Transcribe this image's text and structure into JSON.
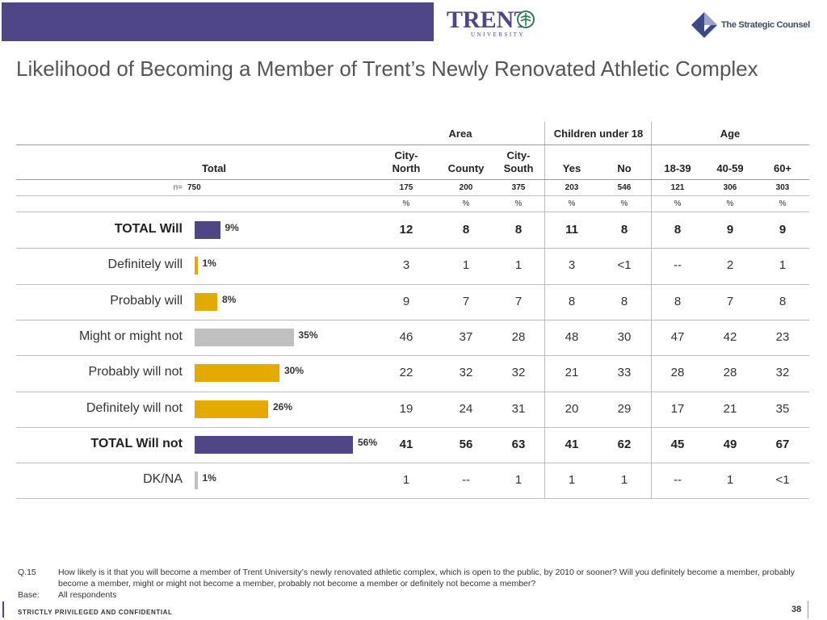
{
  "logos": {
    "trent_word": "TRENT",
    "trent_sub": "UNIVERSITY",
    "strategic_counsel": "The Strategic Counsel"
  },
  "title": "Likelihood of Becoming a Member of Trent’s Newly Renovated Athletic Complex",
  "groups": {
    "area": "Area",
    "children": "Children under 18",
    "age": "Age"
  },
  "columns": {
    "total": "Total",
    "city_north": [
      "City-",
      "North"
    ],
    "county": "County",
    "city_south": [
      "City-",
      "South"
    ],
    "yes": "Yes",
    "no": "No",
    "age1": "18-39",
    "age2": "40-59",
    "age3": "60+"
  },
  "n_label": "n=",
  "n_values": [
    "750",
    "175",
    "200",
    "375",
    "203",
    "546",
    "121",
    "306",
    "303"
  ],
  "percent_sign": "%",
  "colors": {
    "purple": "#4f4688",
    "gold": "#e5aa00",
    "gray": "#c0c0c0"
  },
  "rows": [
    {
      "label": "TOTAL Will",
      "bold": true,
      "total": "9%",
      "total_value": 9,
      "bar_color": "purple",
      "values": [
        "12",
        "8",
        "8",
        "11",
        "8",
        "8",
        "9",
        "9"
      ]
    },
    {
      "label": "Definitely will",
      "bold": false,
      "total": "1%",
      "total_value": 1,
      "bar_color": "gold",
      "values": [
        "3",
        "1",
        "1",
        "3",
        "<1",
        "--",
        "2",
        "1"
      ]
    },
    {
      "label": "Probably will",
      "bold": false,
      "total": "8%",
      "total_value": 8,
      "bar_color": "gold",
      "values": [
        "9",
        "7",
        "7",
        "8",
        "8",
        "8",
        "7",
        "8"
      ]
    },
    {
      "label": "Might or might not",
      "bold": false,
      "total": "35%",
      "total_value": 35,
      "bar_color": "gray",
      "values": [
        "46",
        "37",
        "28",
        "48",
        "30",
        "47",
        "42",
        "23"
      ]
    },
    {
      "label": "Probably will not",
      "bold": false,
      "total": "30%",
      "total_value": 30,
      "bar_color": "gold",
      "values": [
        "22",
        "32",
        "32",
        "21",
        "33",
        "28",
        "28",
        "32"
      ]
    },
    {
      "label": "Definitely will not",
      "bold": false,
      "total": "26%",
      "total_value": 26,
      "bar_color": "gold",
      "values": [
        "19",
        "24",
        "31",
        "20",
        "29",
        "17",
        "21",
        "35"
      ]
    },
    {
      "label": "TOTAL Will not",
      "bold": true,
      "total": "56%",
      "total_value": 56,
      "bar_color": "purple",
      "values": [
        "41",
        "56",
        "63",
        "41",
        "62",
        "45",
        "49",
        "67"
      ]
    },
    {
      "label": "DK/NA",
      "bold": false,
      "total": "1%",
      "total_value": 1,
      "bar_color": "gray",
      "values": [
        "1",
        "--",
        "1",
        "1",
        "1",
        "--",
        "1",
        "<1"
      ]
    }
  ],
  "footnotes": {
    "q_label": "Q.15",
    "q_text": "How likely is it that you will become a member of Trent University’s newly renovated athletic complex, which is open to the public, by 2010 or sooner? Will you definitely become a member, probably become a member, might or might not become a member, probably not become a member or definitely not become a member?",
    "base_label": "Base:",
    "base_text": "All respondents"
  },
  "confidential": "STRICTLY PRIVILEGED AND CONFIDENTIAL",
  "page_number": "38"
}
